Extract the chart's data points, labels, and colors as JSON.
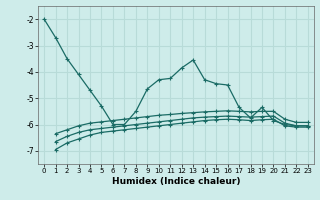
{
  "xlabel": "Humidex (Indice chaleur)",
  "ylabel": "",
  "bg_color": "#ceecea",
  "grid_color": "#b8dbd8",
  "line_color": "#1a6b65",
  "xlim": [
    -0.5,
    23.5
  ],
  "ylim": [
    -7.5,
    -1.5
  ],
  "yticks": [
    -7,
    -6,
    -5,
    -4,
    -3,
    -2
  ],
  "xticks": [
    0,
    1,
    2,
    3,
    4,
    5,
    6,
    7,
    8,
    9,
    10,
    11,
    12,
    13,
    14,
    15,
    16,
    17,
    18,
    19,
    20,
    21,
    22,
    23
  ],
  "line1_x": [
    0,
    1,
    2,
    3,
    4,
    5,
    6,
    7,
    8,
    9,
    10,
    11,
    12,
    13,
    14,
    15,
    16,
    17,
    18,
    19,
    20,
    21,
    22,
    23
  ],
  "line1_y": [
    -2.0,
    -2.7,
    -3.5,
    -4.1,
    -4.7,
    -5.3,
    -6.0,
    -6.0,
    -5.5,
    -4.65,
    -4.3,
    -4.25,
    -3.85,
    -3.55,
    -4.3,
    -4.45,
    -4.5,
    -5.35,
    -5.75,
    -5.35,
    -5.85,
    -6.0,
    -6.05,
    -6.05
  ],
  "line2_x": [
    1,
    2,
    3,
    4,
    5,
    6,
    7,
    8,
    9,
    10,
    11,
    12,
    13,
    14,
    15,
    16,
    17,
    18,
    19,
    20,
    21,
    22,
    23
  ],
  "line2_y": [
    -6.35,
    -6.2,
    -6.05,
    -5.95,
    -5.9,
    -5.85,
    -5.8,
    -5.75,
    -5.7,
    -5.65,
    -5.62,
    -5.58,
    -5.55,
    -5.52,
    -5.5,
    -5.48,
    -5.5,
    -5.52,
    -5.5,
    -5.5,
    -5.8,
    -5.92,
    -5.92
  ],
  "line3_x": [
    1,
    2,
    3,
    4,
    5,
    6,
    7,
    8,
    9,
    10,
    11,
    12,
    13,
    14,
    15,
    16,
    17,
    18,
    19,
    20,
    21,
    22,
    23
  ],
  "line3_y": [
    -6.65,
    -6.45,
    -6.3,
    -6.2,
    -6.15,
    -6.1,
    -6.05,
    -6.0,
    -5.95,
    -5.9,
    -5.85,
    -5.8,
    -5.75,
    -5.72,
    -5.7,
    -5.68,
    -5.7,
    -5.72,
    -5.7,
    -5.68,
    -5.95,
    -6.05,
    -6.05
  ],
  "line4_x": [
    1,
    2,
    3,
    4,
    5,
    6,
    7,
    8,
    9,
    10,
    11,
    12,
    13,
    14,
    15,
    16,
    17,
    18,
    19,
    20,
    21,
    22,
    23
  ],
  "line4_y": [
    -6.95,
    -6.7,
    -6.55,
    -6.4,
    -6.3,
    -6.25,
    -6.2,
    -6.15,
    -6.1,
    -6.05,
    -6.0,
    -5.95,
    -5.9,
    -5.85,
    -5.82,
    -5.8,
    -5.82,
    -5.85,
    -5.82,
    -5.8,
    -6.05,
    -6.1,
    -6.1
  ]
}
